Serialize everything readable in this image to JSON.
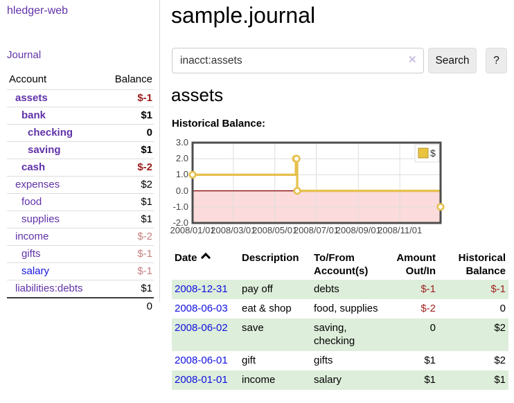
{
  "sidebar": {
    "app_title": "hledger-web",
    "journal_link": "Journal",
    "accounts_table": {
      "headers": {
        "account": "Account",
        "balance": "Balance"
      },
      "rows": [
        {
          "account": "assets",
          "balance": "$-1",
          "depth": 1,
          "bold": true,
          "negative": "strong",
          "link_color": "purple"
        },
        {
          "account": "bank",
          "balance": "$1",
          "depth": 2,
          "bold": true,
          "negative": "none",
          "link_color": "purple"
        },
        {
          "account": "checking",
          "balance": "0",
          "depth": 3,
          "bold": true,
          "negative": "none",
          "link_color": "purple"
        },
        {
          "account": "saving",
          "balance": "$1",
          "depth": 3,
          "bold": true,
          "negative": "none",
          "link_color": "purple"
        },
        {
          "account": "cash",
          "balance": "$-2",
          "depth": 2,
          "bold": true,
          "negative": "strong",
          "link_color": "purple"
        },
        {
          "account": "expenses",
          "balance": "$2",
          "depth": 1,
          "bold": false,
          "negative": "none",
          "link_color": "purple"
        },
        {
          "account": "food",
          "balance": "$1",
          "depth": 2,
          "bold": false,
          "negative": "none",
          "link_color": "purple"
        },
        {
          "account": "supplies",
          "balance": "$1",
          "depth": 2,
          "bold": false,
          "negative": "none",
          "link_color": "purple"
        },
        {
          "account": "income",
          "balance": "$-2",
          "depth": 1,
          "bold": false,
          "negative": "soft",
          "link_color": "purple"
        },
        {
          "account": "gifts",
          "balance": "$-1",
          "depth": 2,
          "bold": false,
          "negative": "soft",
          "link_color": "purple"
        },
        {
          "account": "salary",
          "balance": "$-1",
          "depth": 2,
          "bold": false,
          "negative": "soft",
          "link_color": "blue"
        },
        {
          "account": "liabilities:debts",
          "balance": "$1",
          "depth": 1,
          "bold": false,
          "negative": "none",
          "link_color": "purple"
        }
      ],
      "total": "0"
    }
  },
  "main": {
    "page_title": "sample.journal",
    "search": {
      "value": "inacct:assets",
      "clear_icon": "✕",
      "search_button": "Search",
      "help_button": "?"
    },
    "account_heading": "assets",
    "chart_label": "Historical Balance:"
  },
  "chart_data": {
    "type": "line",
    "step": true,
    "title": "Historical Balance:",
    "xlabel": "",
    "ylabel": "",
    "ylim": [
      -2,
      3
    ],
    "y_ticks": [
      "3.0",
      "2.0",
      "1.0",
      "0.0",
      "-1.0",
      "-2.0"
    ],
    "y_tick_values": [
      3,
      2,
      1,
      0,
      -1,
      -2
    ],
    "x_range_days": [
      0,
      365
    ],
    "x_ticks": [
      {
        "label": "2008/01/01",
        "day": 0
      },
      {
        "label": "2008/03/01",
        "day": 60
      },
      {
        "label": "2008/05/01",
        "day": 121
      },
      {
        "label": "2008/07/01",
        "day": 182
      },
      {
        "label": "2008/09/01",
        "day": 244
      },
      {
        "label": "2008/11/01",
        "day": 305
      }
    ],
    "legend": {
      "label": "$",
      "position": "top-right"
    },
    "series": [
      {
        "name": "$",
        "color": "#e6c04c",
        "points": [
          {
            "date": "2008-01-01",
            "day": 0,
            "value": 1
          },
          {
            "date": "2008-06-01",
            "day": 152,
            "value": 2
          },
          {
            "date": "2008-06-02",
            "day": 153,
            "value": 2
          },
          {
            "date": "2008-06-03",
            "day": 154,
            "value": 0
          },
          {
            "date": "2008-12-31",
            "day": 365,
            "value": -1
          }
        ]
      }
    ],
    "colors": {
      "negative_region": "#fbdbdb",
      "zero_line": "#8c0a0a",
      "grid": "#dedede",
      "border": "#4d4d4d",
      "legend_fill": "#eac43f",
      "legend_border": "#b6952e"
    }
  },
  "register": {
    "headers": {
      "date": "Date",
      "description": "Description",
      "accounts": "To/From Account(s)",
      "amount": "Amount Out/In",
      "balance": "Historical Balance"
    },
    "sort_icon": "chevron-up",
    "rows": [
      {
        "date": "2008-12-31",
        "description": "pay off",
        "accounts": "debts",
        "amount": "$-1",
        "balance": "$-1",
        "amount_negative": true,
        "balance_negative": true
      },
      {
        "date": "2008-06-03",
        "description": "eat & shop",
        "accounts": "food, supplies",
        "amount": "$-2",
        "balance": "0",
        "amount_negative": true,
        "balance_negative": false
      },
      {
        "date": "2008-06-02",
        "description": "save",
        "accounts": "saving, checking",
        "amount": "0",
        "balance": "$2",
        "amount_negative": false,
        "balance_negative": false
      },
      {
        "date": "2008-06-01",
        "description": "gift",
        "accounts": "gifts",
        "amount": "$1",
        "balance": "$2",
        "amount_negative": false,
        "balance_negative": false
      },
      {
        "date": "2008-01-01",
        "description": "income",
        "accounts": "salary",
        "amount": "$1",
        "balance": "$1",
        "amount_negative": false,
        "balance_negative": false
      }
    ]
  }
}
